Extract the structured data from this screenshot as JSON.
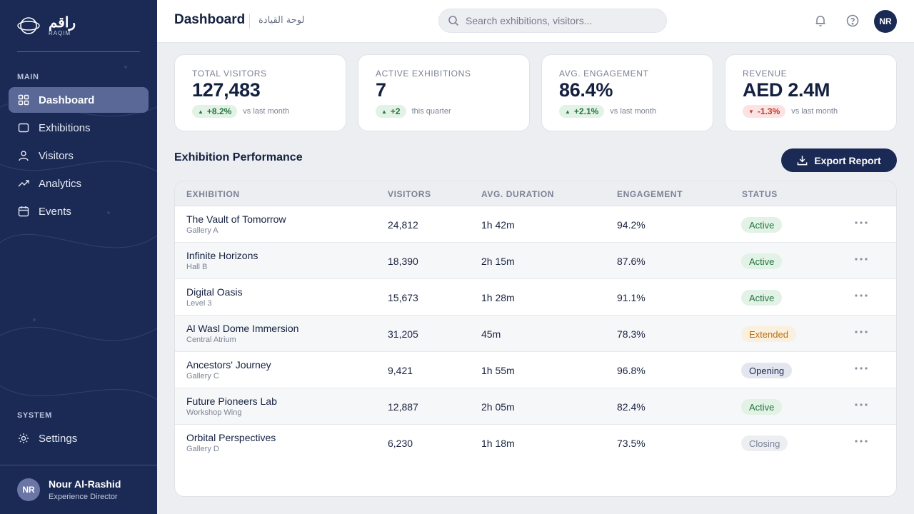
{
  "brand": {
    "name_ar": "راقم",
    "name_en": "RAQIM"
  },
  "nav": {
    "main_label": "MAIN",
    "items": [
      {
        "label": "Dashboard",
        "icon": "grid-icon",
        "active": true
      },
      {
        "label": "Exhibitions",
        "icon": "square-icon",
        "active": false
      },
      {
        "label": "Visitors",
        "icon": "user-icon",
        "active": false
      },
      {
        "label": "Analytics",
        "icon": "trend-icon",
        "active": false
      },
      {
        "label": "Events",
        "icon": "calendar-icon",
        "active": false
      }
    ],
    "system_label": "SYSTEM",
    "settings_label": "Settings"
  },
  "user": {
    "initials": "NR",
    "name": "Nour Al-Rashid",
    "role": "Experience Director"
  },
  "header": {
    "title": "Dashboard",
    "title_ar": "لوحة القيادة",
    "search_placeholder": "Search exhibitions, visitors...",
    "avatar_initials": "NR"
  },
  "kpis": [
    {
      "label": "Total Visitors",
      "value": "127,483",
      "delta": "+8.2%",
      "trend": "up",
      "note": "vs last month"
    },
    {
      "label": "Active Exhibitions",
      "value": "7",
      "delta": "+2",
      "trend": "up",
      "note": "this quarter"
    },
    {
      "label": "Avg. Engagement",
      "value": "86.4%",
      "delta": "+2.1%",
      "trend": "up",
      "note": "vs last month"
    },
    {
      "label": "Revenue",
      "value": "AED 2.4M",
      "delta": "-1.3%",
      "trend": "down",
      "note": "vs last month"
    }
  ],
  "section": {
    "title": "Exhibition Performance",
    "export_label": "Export Report"
  },
  "table": {
    "columns": [
      "Exhibition",
      "Visitors",
      "Avg. Duration",
      "Engagement",
      "Status"
    ],
    "rows": [
      {
        "name": "The Vault of Tomorrow",
        "location": "Gallery A",
        "visitors": "24,812",
        "duration": "1h 42m",
        "engagement": "94.2%",
        "status": "Active"
      },
      {
        "name": "Infinite Horizons",
        "location": "Hall B",
        "visitors": "18,390",
        "duration": "2h 15m",
        "engagement": "87.6%",
        "status": "Active"
      },
      {
        "name": "Digital Oasis",
        "location": "Level 3",
        "visitors": "15,673",
        "duration": "1h 28m",
        "engagement": "91.1%",
        "status": "Active"
      },
      {
        "name": "Al Wasl Dome Immersion",
        "location": "Central Atrium",
        "visitors": "31,205",
        "duration": "45m",
        "engagement": "78.3%",
        "status": "Extended"
      },
      {
        "name": "Ancestors' Journey",
        "location": "Gallery C",
        "visitors": "9,421",
        "duration": "1h 55m",
        "engagement": "96.8%",
        "status": "Opening"
      },
      {
        "name": "Future Pioneers Lab",
        "location": "Workshop Wing",
        "visitors": "12,887",
        "duration": "2h 05m",
        "engagement": "82.4%",
        "status": "Active"
      },
      {
        "name": "Orbital Perspectives",
        "location": "Gallery D",
        "visitors": "6,230",
        "duration": "1h 18m",
        "engagement": "73.5%",
        "status": "Closing"
      }
    ]
  },
  "colors": {
    "sidebar": "#1b2a55",
    "accent": "#1b2a55",
    "active_nav": "#5a6897",
    "positive": "#24753d",
    "negative": "#c0392b",
    "extended": "#b5701d"
  }
}
